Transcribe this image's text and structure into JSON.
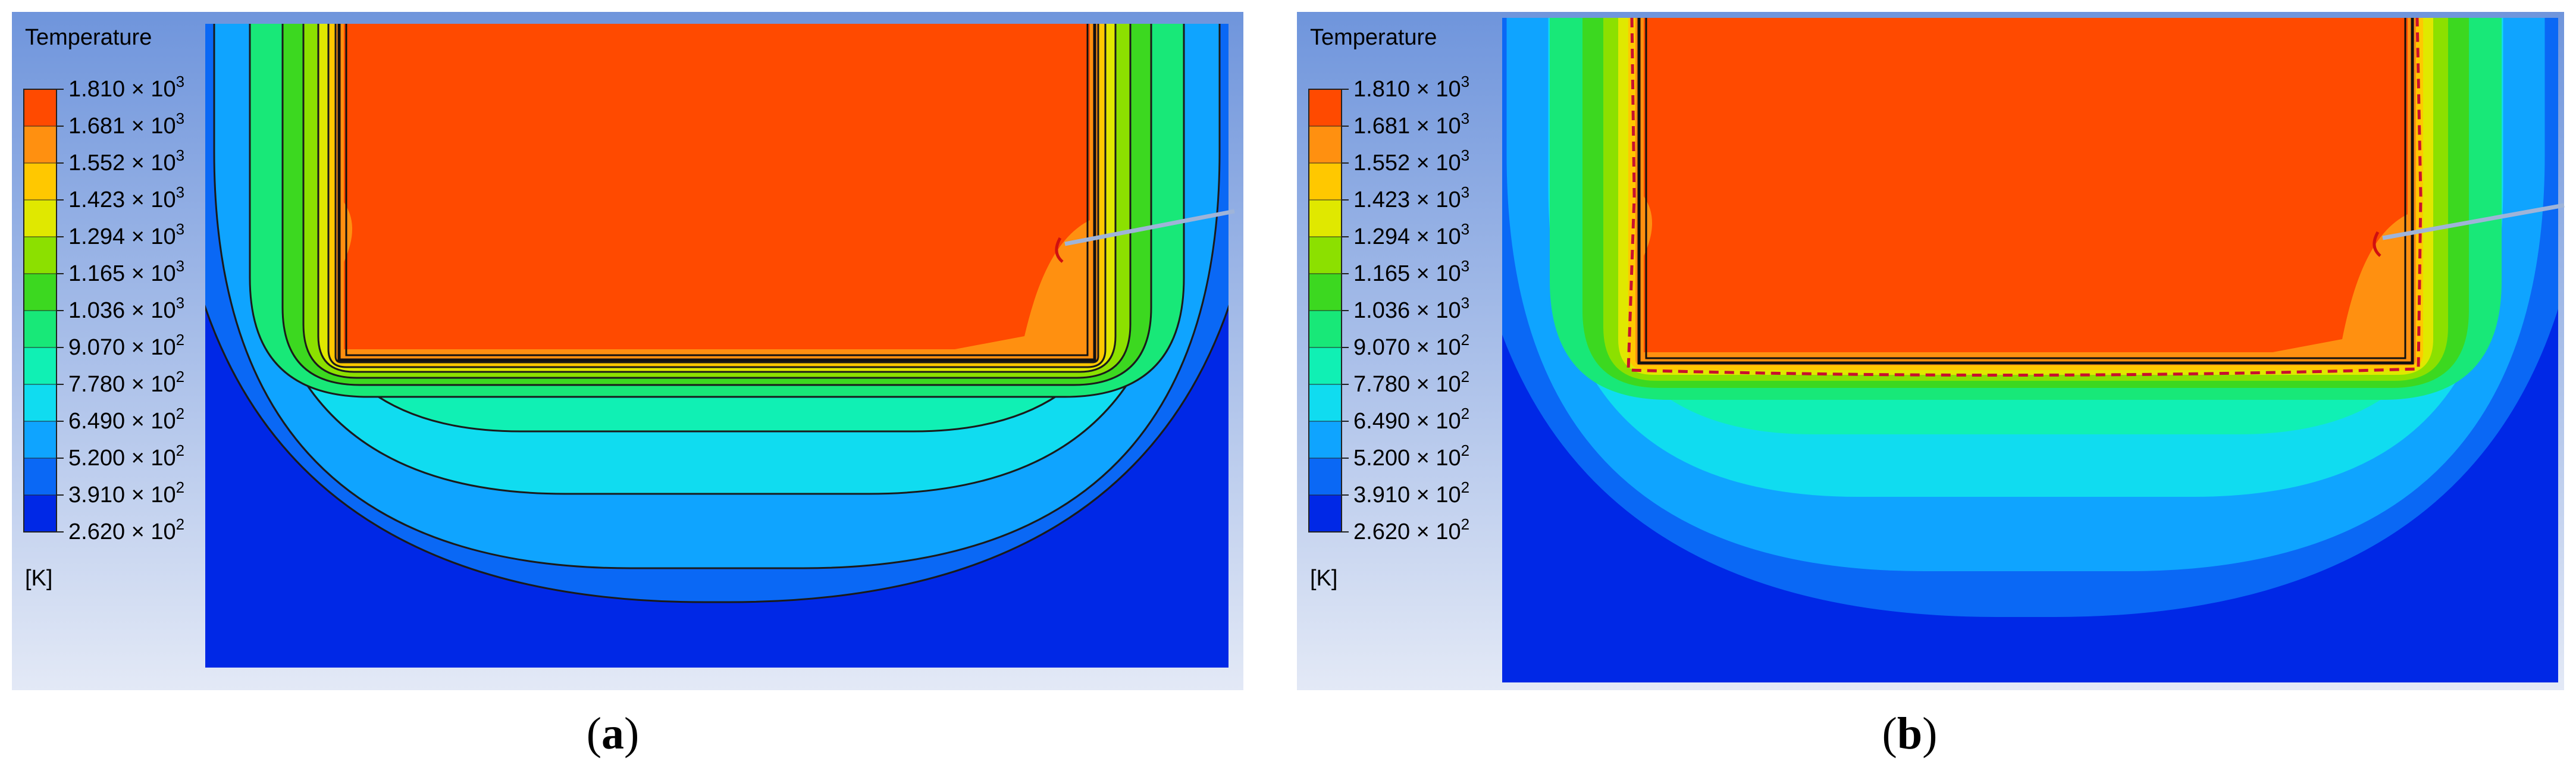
{
  "colors": {
    "background_top": "#6f95dc",
    "background_bottom": "#e3e9f6",
    "levels": [
      "#0028e6",
      "#0a68f5",
      "#0fa4ff",
      "#10dcf0",
      "#10f0b4",
      "#18e878",
      "#3cd820",
      "#8ce000",
      "#e0e800",
      "#ffc800",
      "#ff9010",
      "#ff4a00"
    ]
  },
  "panels": [
    {
      "id": "a",
      "caption": "a",
      "legend": {
        "title": "Temperature",
        "unit": "[K]",
        "labels": [
          {
            "mantissa": "1.810",
            "exp": "3"
          },
          {
            "mantissa": "1.681",
            "exp": "3"
          },
          {
            "mantissa": "1.552",
            "exp": "3"
          },
          {
            "mantissa": "1.423",
            "exp": "3"
          },
          {
            "mantissa": "1.294",
            "exp": "3"
          },
          {
            "mantissa": "1.165",
            "exp": "3"
          },
          {
            "mantissa": "1.036",
            "exp": "3"
          },
          {
            "mantissa": "9.070",
            "exp": "2"
          },
          {
            "mantissa": "7.780",
            "exp": "2"
          },
          {
            "mantissa": "6.490",
            "exp": "2"
          },
          {
            "mantissa": "5.200",
            "exp": "2"
          },
          {
            "mantissa": "3.910",
            "exp": "2"
          },
          {
            "mantissa": "2.620",
            "exp": "2"
          }
        ]
      },
      "contour_lines": true,
      "dashed_boundary": false
    },
    {
      "id": "b",
      "caption": "b",
      "legend": {
        "title": "Temperature",
        "unit": "[K]",
        "labels": [
          {
            "mantissa": "1.810",
            "exp": "3"
          },
          {
            "mantissa": "1.681",
            "exp": "3"
          },
          {
            "mantissa": "1.552",
            "exp": "3"
          },
          {
            "mantissa": "1.423",
            "exp": "3"
          },
          {
            "mantissa": "1.294",
            "exp": "3"
          },
          {
            "mantissa": "1.165",
            "exp": "3"
          },
          {
            "mantissa": "1.036",
            "exp": "3"
          },
          {
            "mantissa": "9.070",
            "exp": "2"
          },
          {
            "mantissa": "7.780",
            "exp": "2"
          },
          {
            "mantissa": "6.490",
            "exp": "2"
          },
          {
            "mantissa": "5.200",
            "exp": "2"
          },
          {
            "mantissa": "3.910",
            "exp": "2"
          },
          {
            "mantissa": "2.620",
            "exp": "2"
          }
        ]
      },
      "contour_lines": false,
      "dashed_boundary": true
    }
  ]
}
